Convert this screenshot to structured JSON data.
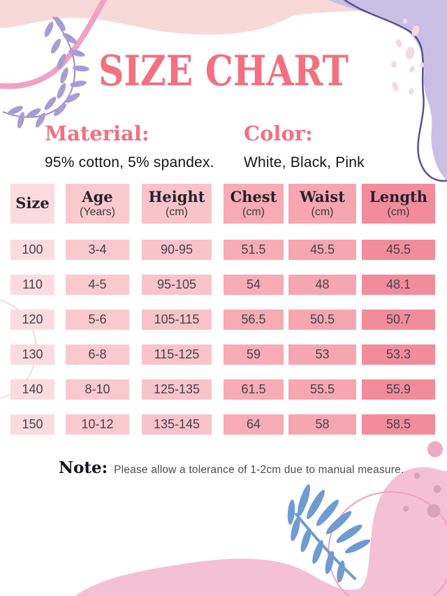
{
  "title": "SIZE CHART",
  "material": {
    "label": "Material:",
    "value": "95% cotton, 5% spandex."
  },
  "color": {
    "label": "Color:",
    "value": "White, Black, Pink"
  },
  "note": {
    "label": "Note:",
    "text": "Please allow a tolerance of 1-2cm due to manual measure."
  },
  "chart_data": {
    "type": "table",
    "title": "SIZE CHART",
    "columns": [
      {
        "name": "Size",
        "unit": ""
      },
      {
        "name": "Age",
        "unit": "(Years)"
      },
      {
        "name": "Height",
        "unit": "(cm)"
      },
      {
        "name": "Chest",
        "unit": "(cm)"
      },
      {
        "name": "Waist",
        "unit": "(cm)"
      },
      {
        "name": "Length",
        "unit": "(cm)"
      }
    ],
    "rows": [
      [
        "100",
        "3-4",
        "90-95",
        "51.5",
        "45.5",
        "45.5"
      ],
      [
        "110",
        "4-5",
        "95-105",
        "54",
        "48",
        "48.1"
      ],
      [
        "120",
        "5-6",
        "105-115",
        "56.5",
        "50.5",
        "50.7"
      ],
      [
        "130",
        "6-8",
        "115-125",
        "59",
        "53",
        "53.3"
      ],
      [
        "140",
        "8-10",
        "125-135",
        "61.5",
        "55.5",
        "55.9"
      ],
      [
        "150",
        "10-12",
        "135-145",
        "64",
        "58",
        "58.5"
      ]
    ]
  },
  "colors": {
    "accent": "#f2707f",
    "heading_text": "#23212b",
    "cell_text": "#46424a",
    "column_backgrounds": [
      "#fbdbe0",
      "#f9c9cf",
      "#f8c3c9",
      "#f7abb4",
      "#f6a6b0",
      "#f28c9b"
    ],
    "deco": {
      "top_band": "#f8d9da",
      "ribbon": "#efa3c4",
      "branch_stem": "#998bc7",
      "branch_leaf": "#a89cd4",
      "lavender_blob": "#c9bfe4",
      "purple_line": "#5a5190",
      "petal": "#f1dae4",
      "side_circle": "#e2e0e6",
      "bottom_blob": "#f4c1d4",
      "bottom_dot": "#d9a2b8",
      "bottom_circle": "#edaac6",
      "outline_ellipse": "#ef9fc0",
      "blue_leaf": "#6f9ad3"
    }
  }
}
